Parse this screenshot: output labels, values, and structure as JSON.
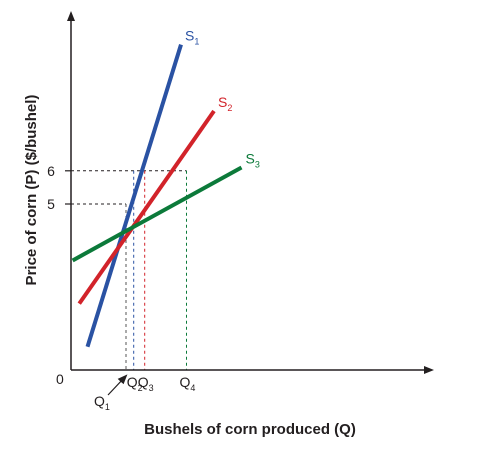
{
  "chart_data": {
    "type": "line",
    "xlabel": "Bushels of corn produced (Q)",
    "ylabel": "Price of corn (P) ($/bushel)",
    "origin_label": "0",
    "yticks": [
      5,
      6
    ],
    "ylim": [
      0,
      11
    ],
    "grid": false,
    "series": [
      {
        "name": "S",
        "subscript": "1",
        "color": "#2a52a3",
        "points": [
          [
            0.3,
            0.7
          ],
          [
            2.0,
            9.8
          ]
        ]
      },
      {
        "name": "S",
        "subscript": "2",
        "color": "#d2232a",
        "points": [
          [
            0.15,
            2.0
          ],
          [
            2.6,
            7.8
          ]
        ]
      },
      {
        "name": "S",
        "subscript": "3",
        "color": "#0c7a3a",
        "points": [
          [
            0.03,
            3.3
          ],
          [
            3.1,
            6.1
          ]
        ]
      }
    ],
    "reference_points": [
      {
        "label": "Q",
        "subscript": "1",
        "x": 1.0,
        "y": 5,
        "color": "#555555",
        "arrow": true
      },
      {
        "label": "Q",
        "subscript": "2",
        "x": 1.14,
        "y": 6,
        "color": "#2a52a3"
      },
      {
        "label": "Q",
        "subscript": "3",
        "x": 1.34,
        "y": 6,
        "color": "#d2232a"
      },
      {
        "label": "Q",
        "subscript": "4",
        "x": 2.1,
        "y": 6,
        "color": "#0c7a3a"
      }
    ]
  }
}
